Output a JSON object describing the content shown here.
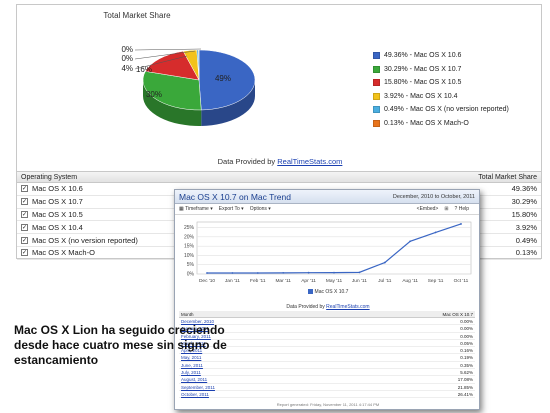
{
  "panel": {
    "title": "Total Market Share",
    "provided_prefix": "Data Provided by ",
    "provided_link": "RealTimeStats.com"
  },
  "chart_data": [
    {
      "type": "pie",
      "title": "Total Market Share",
      "series": [
        {
          "name": "Mac OS X 10.6",
          "value": 49.36,
          "color": "#3a66c4",
          "label": "49%"
        },
        {
          "name": "Mac OS X 10.7",
          "value": 30.29,
          "color": "#3aa83a",
          "label": "30%"
        },
        {
          "name": "Mac OS X 10.5",
          "value": 15.8,
          "color": "#d62c2c",
          "label": "16%"
        },
        {
          "name": "Mac OS X 10.4",
          "value": 3.92,
          "color": "#f2c21a",
          "label": "4%"
        },
        {
          "name": "Mac OS X (no version reported)",
          "value": 0.49,
          "color": "#4aaee0",
          "label": "0%"
        },
        {
          "name": "Mac OS X Mach-O",
          "value": 0.13,
          "color": "#e8741c",
          "label": "0%"
        }
      ],
      "legend_position": "right"
    },
    {
      "type": "line",
      "title": "Mac OS X 10.7 on Mac Trend",
      "categories": [
        "Dec '10",
        "Jan '11",
        "Feb '11",
        "Mar '11",
        "Apr '11",
        "May '11",
        "Jun '11",
        "Jul '11",
        "Aug '11",
        "Sep '11",
        "Oct '11"
      ],
      "series": [
        {
          "name": "Mac OS X 10.7",
          "values": [
            0,
            0,
            0,
            0.05,
            0.16,
            0.19,
            0.35,
            5.62,
            17.08,
            21.85,
            26.41
          ],
          "color": "#3a66c4"
        }
      ],
      "yticks": [
        "0%",
        "5%",
        "10%",
        "15%",
        "20%",
        "25%"
      ],
      "ylim": [
        0,
        28
      ],
      "grid": true
    }
  ],
  "legend": [
    {
      "text": "49.36% - Mac OS X 10.6",
      "color": "#3a66c4"
    },
    {
      "text": "30.29% - Mac OS X 10.7",
      "color": "#3aa83a"
    },
    {
      "text": "15.80% - Mac OS X 10.5",
      "color": "#d62c2c"
    },
    {
      "text": "3.92% - Mac OS X 10.4",
      "color": "#f2c21a"
    },
    {
      "text": "0.49% - Mac OS X (no version reported)",
      "color": "#4aaee0"
    },
    {
      "text": "0.13% - Mac OS X Mach-O",
      "color": "#e8741c"
    }
  ],
  "table": {
    "col_os": "Operating System",
    "col_share": "Total Market Share",
    "rows": [
      {
        "name": "Mac OS X 10.6",
        "share": "49.36%"
      },
      {
        "name": "Mac OS X 10.7",
        "share": "30.29%"
      },
      {
        "name": "Mac OS X 10.5",
        "share": "15.80%"
      },
      {
        "name": "Mac OS X 10.4",
        "share": "3.92%"
      },
      {
        "name": "Mac OS X (no version reported)",
        "share": "0.49%"
      },
      {
        "name": "Mac OS X Mach-O",
        "share": "0.13%"
      }
    ]
  },
  "trend": {
    "title": "Mac OS X 10.7 on Mac Trend",
    "range": "December, 2010 to October, 2011",
    "toolbar": {
      "timeframe": "Timeframe",
      "export": "Export To",
      "options": "Options",
      "embed": "Embed",
      "help": "Help"
    },
    "legend": "Mac OS X 10.7",
    "provided_prefix": "Data Provided by ",
    "provided_link": "RealTimeStats.com",
    "col_month": "Month",
    "col_value": "Mac OS X 10.7",
    "rows": [
      {
        "month": "December, 2010",
        "value": "0.00%"
      },
      {
        "month": "January, 2011",
        "value": "0.00%"
      },
      {
        "month": "February, 2011",
        "value": "0.00%"
      },
      {
        "month": "March, 2011",
        "value": "0.05%"
      },
      {
        "month": "April, 2011",
        "value": "0.16%"
      },
      {
        "month": "May, 2011",
        "value": "0.19%"
      },
      {
        "month": "June, 2011",
        "value": "0.35%"
      },
      {
        "month": "July, 2011",
        "value": "5.62%"
      },
      {
        "month": "August, 2011",
        "value": "17.08%"
      },
      {
        "month": "September, 2011",
        "value": "21.85%"
      },
      {
        "month": "October, 2011",
        "value": "26.41%"
      }
    ],
    "footer": "Report generated: Friday, November 11, 2011 4:17:44 PM"
  },
  "caption": "Mac OS X Lion ha seguido creciendo desde hace cuatro mese sin signo de estancamiento"
}
